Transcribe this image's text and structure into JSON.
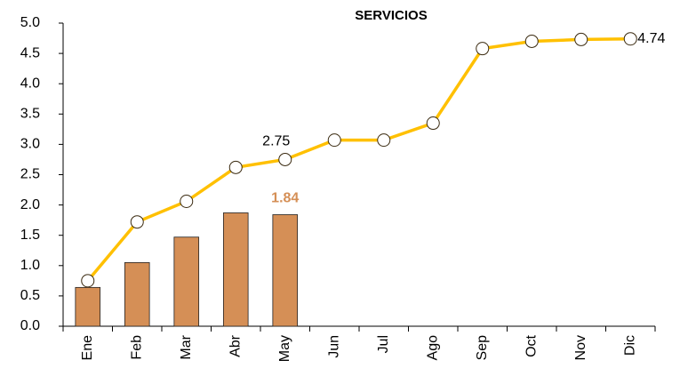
{
  "chart_data": {
    "type": "combo",
    "title": "SERVICIOS",
    "categories": [
      "Ene",
      "Feb",
      "Mar",
      "Abr",
      "May",
      "Jun",
      "Jul",
      "Ago",
      "Sep",
      "Oct",
      "Nov",
      "Dic"
    ],
    "series": [
      {
        "type": "bar",
        "color": "#d58f56",
        "values": [
          0.64,
          1.05,
          1.47,
          1.87,
          1.84,
          null,
          null,
          null,
          null,
          null,
          null,
          null
        ],
        "value_labels": [
          null,
          null,
          null,
          null,
          "1.84",
          null,
          null,
          null,
          null,
          null,
          null,
          null
        ],
        "label_color": "#d58f56"
      },
      {
        "type": "line",
        "color": "#ffc000",
        "values": [
          0.75,
          1.72,
          2.06,
          2.62,
          2.75,
          3.07,
          3.07,
          3.35,
          4.58,
          4.7,
          4.73,
          4.74
        ],
        "value_labels": [
          null,
          null,
          null,
          null,
          "2.75",
          null,
          null,
          null,
          null,
          null,
          null,
          "4.74"
        ],
        "label_color": "#000000"
      }
    ],
    "ylim": [
      0,
      5
    ],
    "yticks": [
      {
        "value": 0,
        "label": "0.0"
      },
      0.5,
      {
        "value": 1,
        "label": "1.0"
      },
      1.5,
      {
        "value": 2,
        "label": "2.0"
      },
      2.5,
      {
        "value": 3,
        "label": "3.0"
      },
      3.5,
      {
        "value": 4,
        "label": "4.0"
      },
      4.5,
      {
        "value": 5,
        "label": "5.0"
      }
    ]
  }
}
